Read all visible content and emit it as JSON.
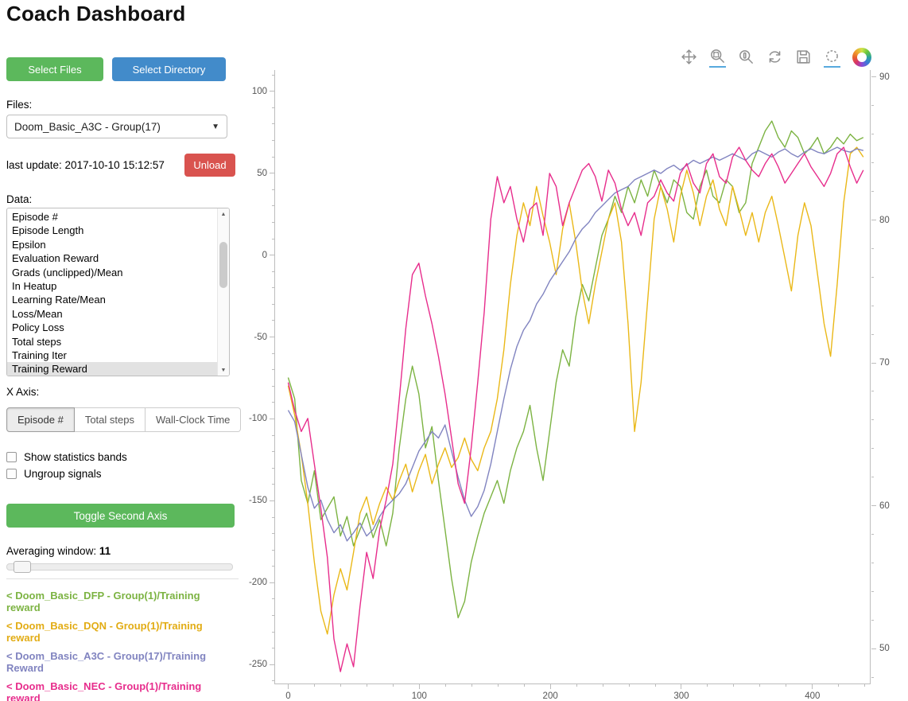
{
  "page": {
    "title": "Coach Dashboard"
  },
  "sidebar": {
    "select_files_label": "Select Files",
    "select_directory_label": "Select Directory",
    "files_label": "Files:",
    "files_dropdown_value": "Doom_Basic_A3C - Group(17)",
    "last_update": "last update: 2017-10-10 15:12:57",
    "unload_label": "Unload",
    "data_label": "Data:",
    "data_items": [
      "Episode #",
      "Episode Length",
      "Epsilon",
      "Evaluation Reward",
      "Grads (unclipped)/Mean",
      "In Heatup",
      "Learning Rate/Mean",
      "Loss/Mean",
      "Policy Loss",
      "Total steps",
      "Training Iter",
      "Training Reward"
    ],
    "data_selected_item": "Training Reward",
    "xaxis_label": "X Axis:",
    "xaxis_options": [
      "Episode #",
      "Total steps",
      "Wall-Clock Time"
    ],
    "xaxis_selected": "Episode #",
    "show_stats_label": "Show statistics bands",
    "ungroup_label": "Ungroup signals",
    "toggle_second_axis_label": "Toggle Second Axis",
    "averaging_label": "Averaging window:",
    "averaging_value": "11",
    "legend": [
      {
        "label": "< Doom_Basic_DFP - Group(1)/Training reward",
        "color": "#7cb342"
      },
      {
        "label": "< Doom_Basic_DQN - Group(1)/Training reward",
        "color": "#e2ac14"
      },
      {
        "label": "< Doom_Basic_A3C - Group(17)/Training Reward",
        "color": "#8184c0"
      },
      {
        "label": "< Doom_Basic_NEC - Group(1)/Training reward",
        "color": "#e72d8c"
      }
    ]
  },
  "toolbar": {
    "tools": [
      {
        "name": "pan-icon",
        "active": false
      },
      {
        "name": "box-zoom-icon",
        "active": true
      },
      {
        "name": "wheel-zoom-icon",
        "active": false
      },
      {
        "name": "reset-icon",
        "active": false
      },
      {
        "name": "save-icon",
        "active": false
      },
      {
        "name": "hover-icon",
        "active": true
      },
      {
        "name": "bokeh-logo",
        "active": false
      }
    ]
  },
  "chart_data": {
    "type": "line",
    "title": "",
    "xlabel": "",
    "ylabel": "",
    "xlim": [
      -10,
      445
    ],
    "ylim_left": [
      -262,
      113
    ],
    "ylim_right": [
      47.5,
      90.5
    ],
    "x_ticks": [
      0,
      100,
      200,
      300,
      400
    ],
    "y_ticks_left": [
      100,
      50,
      0,
      -50,
      -100,
      -150,
      -200,
      -250
    ],
    "y_ticks_right": [
      90,
      80,
      70,
      60,
      50
    ],
    "grid": false,
    "legend_position": "sidebar",
    "series": [
      {
        "name": "Doom_Basic_DFP - Group(1)/Training reward",
        "color": "#7cb342",
        "x_start": 0,
        "x_step": 5,
        "values": [
          -75,
          -88,
          -138,
          -152,
          -132,
          -162,
          -155,
          -148,
          -172,
          -160,
          -178,
          -168,
          -158,
          -173,
          -162,
          -178,
          -158,
          -118,
          -88,
          -68,
          -85,
          -118,
          -105,
          -138,
          -168,
          -198,
          -222,
          -212,
          -188,
          -172,
          -158,
          -148,
          -138,
          -152,
          -132,
          -118,
          -108,
          -92,
          -118,
          -138,
          -108,
          -78,
          -58,
          -68,
          -38,
          -18,
          -28,
          -8,
          12,
          22,
          36,
          26,
          42,
          32,
          46,
          36,
          52,
          42,
          32,
          46,
          42,
          26,
          22,
          42,
          52,
          36,
          32,
          46,
          42,
          26,
          32,
          56,
          66,
          76,
          82,
          72,
          66,
          76,
          72,
          62,
          66,
          72,
          62,
          66,
          72,
          68,
          74,
          70,
          72
        ]
      },
      {
        "name": "Doom_Basic_DQN - Group(1)/Training reward",
        "color": "#eab818",
        "x_start": 0,
        "x_step": 5,
        "values": [
          -80,
          -98,
          -122,
          -152,
          -188,
          -218,
          -232,
          -208,
          -192,
          -205,
          -182,
          -158,
          -148,
          -165,
          -152,
          -142,
          -150,
          -138,
          -128,
          -145,
          -132,
          -122,
          -140,
          -128,
          -118,
          -130,
          -124,
          -112,
          -125,
          -132,
          -118,
          -108,
          -88,
          -58,
          -18,
          12,
          32,
          18,
          42,
          24,
          8,
          -12,
          16,
          32,
          8,
          -22,
          -42,
          -18,
          2,
          22,
          32,
          8,
          -42,
          -108,
          -78,
          -28,
          22,
          42,
          28,
          8,
          36,
          52,
          38,
          18,
          36,
          46,
          28,
          18,
          42,
          28,
          12,
          26,
          8,
          26,
          36,
          18,
          -2,
          -22,
          12,
          32,
          18,
          -12,
          -42,
          -62,
          -18,
          32,
          62,
          66,
          60
        ]
      },
      {
        "name": "Doom_Basic_A3C - Group(17)/Training Reward",
        "color": "#8184c0",
        "x_start": 0,
        "x_step": 5,
        "values": [
          -95,
          -102,
          -122,
          -142,
          -155,
          -150,
          -162,
          -170,
          -165,
          -175,
          -170,
          -164,
          -172,
          -168,
          -160,
          -154,
          -150,
          -146,
          -140,
          -130,
          -120,
          -114,
          -108,
          -112,
          -104,
          -120,
          -136,
          -150,
          -160,
          -154,
          -144,
          -128,
          -108,
          -88,
          -70,
          -56,
          -46,
          -40,
          -30,
          -24,
          -16,
          -10,
          -4,
          2,
          10,
          16,
          20,
          26,
          30,
          34,
          38,
          40,
          42,
          46,
          48,
          50,
          52,
          50,
          53,
          55,
          52,
          55,
          58,
          56,
          58,
          60,
          58,
          60,
          62,
          60,
          58,
          62,
          64,
          62,
          60,
          63,
          65,
          62,
          60,
          63,
          65,
          63,
          62,
          64,
          66,
          64,
          63,
          65,
          64
        ]
      },
      {
        "name": "Doom_Basic_NEC - Group(1)/Training reward",
        "color": "#e72d8c",
        "x_start": 0,
        "x_step": 5,
        "values": [
          -78,
          -95,
          -108,
          -100,
          -128,
          -155,
          -185,
          -235,
          -255,
          -238,
          -252,
          -215,
          -182,
          -198,
          -168,
          -150,
          -128,
          -88,
          -45,
          -12,
          -5,
          -25,
          -42,
          -62,
          -85,
          -112,
          -140,
          -152,
          -118,
          -78,
          -35,
          22,
          48,
          32,
          42,
          22,
          8,
          28,
          32,
          12,
          50,
          42,
          18,
          32,
          42,
          52,
          56,
          48,
          33,
          52,
          44,
          28,
          18,
          26,
          12,
          32,
          36,
          46,
          38,
          33,
          50,
          56,
          44,
          38,
          56,
          62,
          48,
          44,
          60,
          66,
          58,
          52,
          48,
          56,
          62,
          54,
          44,
          50,
          56,
          62,
          54,
          48,
          42,
          50,
          62,
          66,
          54,
          44,
          52
        ]
      }
    ]
  }
}
